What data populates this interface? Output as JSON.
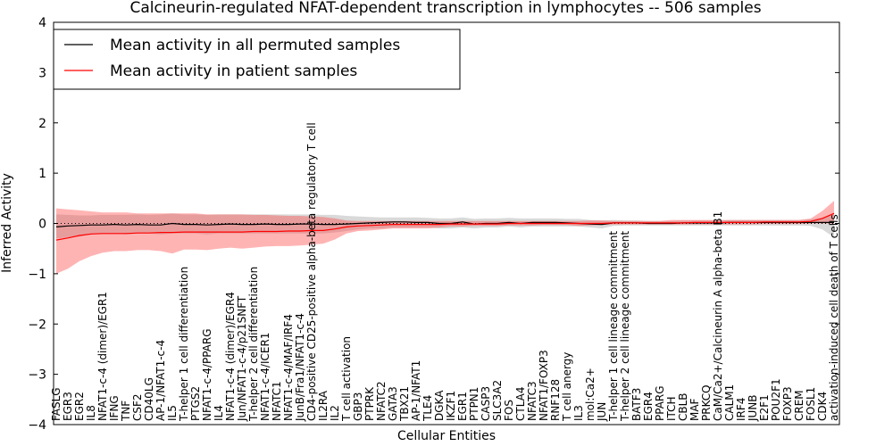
{
  "chart_data": {
    "type": "line",
    "title": "Calcineurin-regulated NFAT-dependent transcription in lymphocytes -- 506 samples",
    "xlabel": "Cellular Entities",
    "ylabel": "Inferred Activity",
    "ylim": [
      -4,
      4
    ],
    "yticks": [
      -4,
      -3,
      -2,
      -1,
      0,
      1,
      2,
      3,
      4
    ],
    "reference_line": 0,
    "legend": {
      "position": "top-left",
      "entries": [
        "Mean activity in all permuted samples",
        "Mean activity in patient samples"
      ]
    },
    "categories": [
      "FASLG",
      "EGR3",
      "EGR2",
      "IL8",
      "NFAT1-c-4 (dimer)/EGR1",
      "IFNG",
      "TNF",
      "CSF2",
      "CD40LG",
      "AP-1/NFAT1-c-4",
      "IL5",
      "T-helper 1 cell differentiation",
      "PTGS2",
      "NFAT1-c-4/PPARG",
      "IL4",
      "NFAT1-c-4 (dimer)/EGR4",
      "Jun/NFAT1-c-4/p21SNFT",
      "T-helper 2 cell differentiation",
      "NFAT1-c-4/ICER1",
      "NFATC1",
      "NFAT1-c-4/MAF/IRF4",
      "JunB/Fra1/NFAT1-c-4",
      "CD4-positive CD25-positive alpha-beta regulatory T cell",
      "IL2RA",
      "IL2",
      "T cell activation",
      "GBP3",
      "PTPRK",
      "NFATC2",
      "GATA3",
      "TBX21",
      "AP-1/NFAT1",
      "TLE4",
      "DGKA",
      "IKZF1",
      "EGR1",
      "PTPN1",
      "CASP3",
      "SLC3A2",
      "FOS",
      "CTLA4",
      "NFATC3",
      "NFAT1/FOXP3",
      "RNF128",
      "T cell anergy",
      "IL3",
      "mol:Ca2+",
      "JUN",
      "T-helper 1 cell lineage commitment",
      "T-helper 2 cell lineage commitment",
      "BATF3",
      "EGR4",
      "PPARG",
      "ITCH",
      "CBLB",
      "MAF",
      "PRKCQ",
      "CaM/Ca2+/Calcineurin A alpha-beta B1",
      "CALM1",
      "IRF4",
      "JUNB",
      "E2F1",
      "POU2F1",
      "FOXP3",
      "CREM",
      "FOSL1",
      "CDK4",
      "activation-induced cell death of T cells"
    ],
    "series": [
      {
        "name": "Mean activity in all permuted samples",
        "color": "#000000",
        "values": [
          -0.07,
          -0.05,
          -0.04,
          -0.03,
          -0.03,
          -0.02,
          -0.03,
          -0.02,
          -0.03,
          -0.03,
          0.0,
          -0.02,
          -0.02,
          -0.03,
          -0.02,
          -0.01,
          -0.02,
          -0.02,
          -0.01,
          -0.02,
          -0.02,
          -0.01,
          -0.01,
          -0.02,
          -0.02,
          -0.01,
          0.0,
          0.01,
          0.02,
          0.03,
          0.03,
          0.02,
          0.02,
          0.0,
          0.0,
          0.03,
          -0.01,
          0.0,
          0.0,
          0.02,
          0.0,
          0.02,
          0.02,
          0.02,
          0.01,
          0.0,
          -0.01,
          -0.02,
          0.01,
          0.01,
          0.01,
          0.0,
          0.0,
          0.0,
          0.01,
          0.01,
          0.01,
          0.01,
          0.02,
          0.02,
          0.02,
          0.02,
          0.02,
          0.02,
          0.02,
          0.02,
          0.02,
          0.02
        ],
        "lower": [
          -0.3,
          -0.28,
          -0.26,
          -0.22,
          -0.2,
          -0.2,
          -0.22,
          -0.2,
          -0.2,
          -0.22,
          -0.2,
          -0.2,
          -0.2,
          -0.22,
          -0.2,
          -0.2,
          -0.2,
          -0.2,
          -0.2,
          -0.2,
          -0.2,
          -0.2,
          -0.2,
          -0.2,
          -0.18,
          -0.15,
          -0.12,
          -0.1,
          -0.1,
          -0.08,
          -0.08,
          -0.08,
          -0.08,
          -0.1,
          -0.1,
          -0.08,
          -0.1,
          -0.08,
          -0.08,
          -0.06,
          -0.08,
          -0.06,
          -0.06,
          -0.06,
          -0.06,
          -0.06,
          -0.08,
          -0.1,
          -0.05,
          -0.04,
          -0.04,
          -0.04,
          -0.04,
          -0.04,
          -0.04,
          -0.04,
          -0.04,
          -0.04,
          -0.04,
          -0.04,
          -0.04,
          -0.04,
          -0.04,
          -0.04,
          -0.04,
          -0.05,
          -0.12,
          -0.28
        ],
        "upper": [
          0.18,
          0.17,
          0.16,
          0.16,
          0.17,
          0.17,
          0.17,
          0.18,
          0.17,
          0.18,
          0.2,
          0.18,
          0.18,
          0.17,
          0.18,
          0.18,
          0.18,
          0.18,
          0.18,
          0.18,
          0.18,
          0.18,
          0.18,
          0.17,
          0.17,
          0.15,
          0.14,
          0.13,
          0.12,
          0.12,
          0.12,
          0.12,
          0.11,
          0.1,
          0.1,
          0.12,
          0.09,
          0.1,
          0.1,
          0.11,
          0.1,
          0.1,
          0.1,
          0.1,
          0.09,
          0.09,
          0.07,
          0.06,
          0.07,
          0.06,
          0.06,
          0.05,
          0.05,
          0.05,
          0.06,
          0.06,
          0.06,
          0.06,
          0.07,
          0.07,
          0.07,
          0.07,
          0.07,
          0.07,
          0.07,
          0.08,
          0.12,
          0.2
        ]
      },
      {
        "name": "Mean activity in patient samples",
        "color": "#ff0000",
        "values": [
          -0.33,
          -0.29,
          -0.24,
          -0.21,
          -0.2,
          -0.2,
          -0.2,
          -0.19,
          -0.19,
          -0.18,
          -0.18,
          -0.17,
          -0.17,
          -0.17,
          -0.17,
          -0.17,
          -0.17,
          -0.16,
          -0.16,
          -0.16,
          -0.15,
          -0.15,
          -0.14,
          -0.14,
          -0.11,
          -0.07,
          -0.05,
          -0.04,
          -0.03,
          -0.02,
          -0.02,
          -0.02,
          -0.02,
          -0.02,
          -0.01,
          -0.01,
          -0.01,
          -0.01,
          -0.01,
          0.0,
          0.0,
          0.0,
          0.0,
          0.0,
          0.0,
          0.0,
          0.0,
          0.0,
          0.01,
          0.01,
          0.01,
          0.01,
          0.01,
          0.01,
          0.01,
          0.02,
          0.02,
          0.02,
          0.02,
          0.02,
          0.02,
          0.03,
          0.03,
          0.03,
          0.03,
          0.04,
          0.1,
          0.2
        ],
        "lower": [
          -1.0,
          -0.9,
          -0.75,
          -0.65,
          -0.58,
          -0.55,
          -0.55,
          -0.53,
          -0.53,
          -0.55,
          -0.6,
          -0.52,
          -0.52,
          -0.53,
          -0.5,
          -0.48,
          -0.5,
          -0.48,
          -0.46,
          -0.45,
          -0.45,
          -0.44,
          -0.42,
          -0.4,
          -0.32,
          -0.2,
          -0.15,
          -0.14,
          -0.12,
          -0.1,
          -0.1,
          -0.1,
          -0.1,
          -0.08,
          -0.06,
          -0.06,
          -0.05,
          -0.05,
          -0.05,
          -0.04,
          -0.04,
          -0.04,
          -0.03,
          -0.03,
          -0.03,
          -0.05,
          -0.04,
          -0.03,
          -0.02,
          -0.02,
          -0.02,
          -0.02,
          -0.02,
          -0.02,
          -0.02,
          -0.02,
          -0.02,
          -0.02,
          -0.02,
          -0.02,
          -0.02,
          -0.01,
          -0.01,
          -0.01,
          -0.01,
          0.0,
          0.0,
          0.0
        ],
        "upper": [
          0.3,
          0.28,
          0.26,
          0.24,
          0.22,
          0.22,
          0.22,
          0.2,
          0.2,
          0.2,
          0.2,
          0.2,
          0.2,
          0.18,
          0.18,
          0.18,
          0.18,
          0.17,
          0.17,
          0.16,
          0.15,
          0.15,
          0.14,
          0.13,
          0.1,
          0.06,
          0.05,
          0.05,
          0.05,
          0.05,
          0.05,
          0.05,
          0.05,
          0.05,
          0.05,
          0.05,
          0.05,
          0.05,
          0.05,
          0.05,
          0.05,
          0.05,
          0.05,
          0.05,
          0.05,
          0.05,
          0.06,
          0.06,
          0.05,
          0.05,
          0.05,
          0.05,
          0.05,
          0.07,
          0.07,
          0.07,
          0.07,
          0.07,
          0.07,
          0.07,
          0.07,
          0.07,
          0.07,
          0.07,
          0.07,
          0.1,
          0.25,
          0.45
        ]
      }
    ]
  }
}
